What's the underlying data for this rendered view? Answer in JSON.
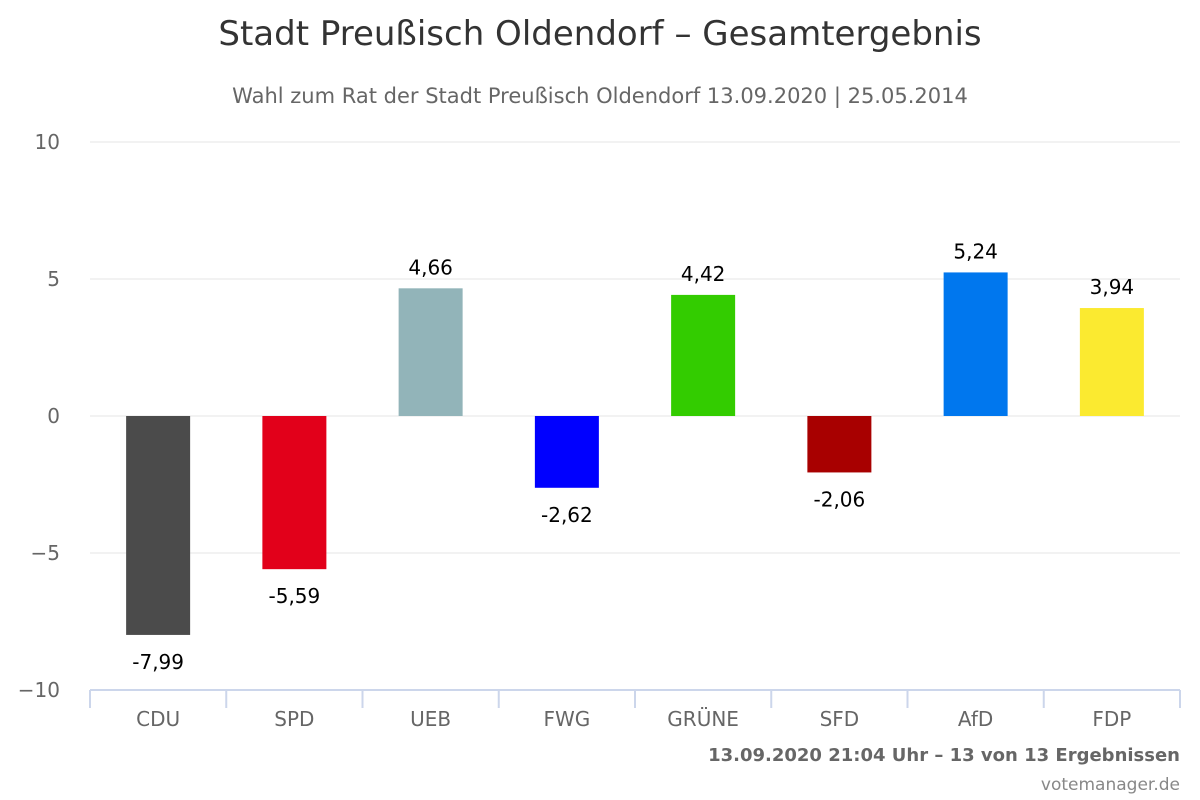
{
  "title": "Stadt Preußisch Oldendorf – Gesamtergebnis",
  "subtitle": "Wahl zum Rat der Stadt Preußisch Oldendorf 13.09.2020 | 25.05.2014",
  "footer": "13.09.2020 21:04 Uhr – 13 von 13 Ergebnissen",
  "credit": "votemanager.de",
  "chart_data": {
    "type": "bar",
    "title": "Stadt Preußisch Oldendorf – Gesamtergebnis",
    "subtitle": "Wahl zum Rat der Stadt Preußisch Oldendorf 13.09.2020 | 25.05.2014",
    "categories": [
      "CDU",
      "SPD",
      "UEB",
      "FWG",
      "GRÜNE",
      "SFD",
      "AfD",
      "FDP"
    ],
    "values": [
      -7.99,
      -5.59,
      4.66,
      -2.62,
      4.42,
      -2.06,
      5.24,
      3.94
    ],
    "value_labels": [
      "-7,99",
      "-5,59",
      "4,66",
      "-2,62",
      "4,42",
      "-2,06",
      "5,24",
      "3,94"
    ],
    "colors": [
      "#4b4b4b",
      "#e2001a",
      "#92b4b9",
      "#0000ff",
      "#33cc00",
      "#a80000",
      "#0077ee",
      "#fbea30"
    ],
    "ylim": [
      -10,
      10
    ],
    "yticks": [
      -10,
      -5,
      0,
      5,
      10
    ],
    "ytick_labels": [
      "−10",
      "−5",
      "0",
      "5",
      "10"
    ],
    "xlabel": "",
    "ylabel": "",
    "grid": true,
    "legend": "none"
  }
}
